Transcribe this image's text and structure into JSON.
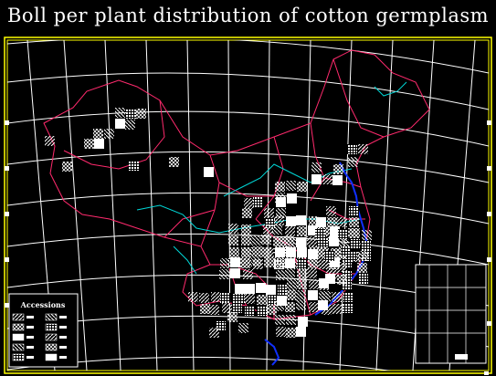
{
  "title": "Boll per plant distribution of cotton germplasm",
  "legend": {
    "title": "Accessions",
    "hatch_samples": 10
  },
  "colors": {
    "background": "#000000",
    "frame": "#ffff00",
    "graticule": "#ffffff",
    "province_border": "#ff2a6d",
    "river_yellow": "#00d8d8",
    "coast_river": "#1030ff",
    "cells": "#ffffff"
  }
}
